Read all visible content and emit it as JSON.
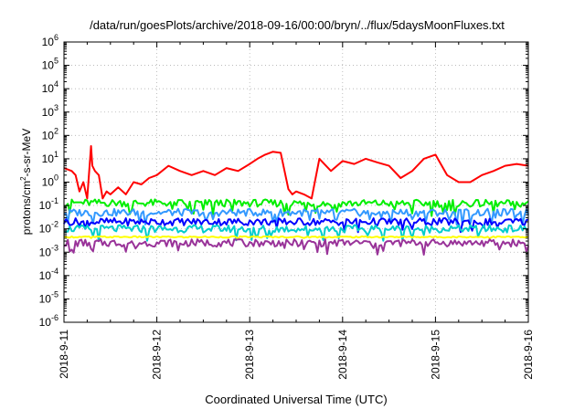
{
  "chart_data": {
    "type": "line",
    "title": "/data/run/goesPlots/archive/2018-09-16/00:00/bryn/../flux/5daysMoonFluxes.txt",
    "xlabel": "Coordinated Universal Time (UTC)",
    "ylabel": "protons/cm²-s-sr-MeV",
    "ylabel_parts": {
      "base": "protons/cm",
      "sup": "2",
      "rest": "-s-sr-MeV"
    },
    "yscale": "log",
    "ylim_exponent": [
      -6,
      6
    ],
    "y_ticks": [
      {
        "base": "10",
        "exp": "-6",
        "value": -6
      },
      {
        "base": "10",
        "exp": "-5",
        "value": -5
      },
      {
        "base": "10",
        "exp": "-4",
        "value": -4
      },
      {
        "base": "10",
        "exp": "-3",
        "value": -3
      },
      {
        "base": "10",
        "exp": "-2",
        "value": -2
      },
      {
        "base": "10",
        "exp": "-1",
        "value": -1
      },
      {
        "base": "10",
        "exp": "0",
        "value": 0
      },
      {
        "base": "10",
        "exp": "1",
        "value": 1
      },
      {
        "base": "10",
        "exp": "2",
        "value": 2
      },
      {
        "base": "10",
        "exp": "3",
        "value": 3
      },
      {
        "base": "10",
        "exp": "4",
        "value": 4
      },
      {
        "base": "10",
        "exp": "5",
        "value": 5
      },
      {
        "base": "10",
        "exp": "6",
        "value": 6
      }
    ],
    "xlim": [
      "2018-09-11",
      "2018-09-16"
    ],
    "x_ticks": [
      "2018-9-11",
      "2018-9-12",
      "2018-9-13",
      "2018-9-14",
      "2018-9-15",
      "2018-9-16"
    ],
    "grid": true,
    "series": [
      {
        "color": "#ff0000",
        "x": [
          "2018-09-11T00:00",
          "2018-09-11T02:00",
          "2018-09-11T03:00",
          "2018-09-11T04:00",
          "2018-09-11T05:00",
          "2018-09-11T06:00",
          "2018-09-11T07:00",
          "2018-09-11T07:20",
          "2018-09-11T08:00",
          "2018-09-11T09:00",
          "2018-09-11T10:00",
          "2018-09-11T11:00",
          "2018-09-11T12:00",
          "2018-09-11T14:00",
          "2018-09-11T16:00",
          "2018-09-11T18:00",
          "2018-09-11T20:00",
          "2018-09-11T22:00",
          "2018-09-12T00:00",
          "2018-09-12T03:00",
          "2018-09-12T06:00",
          "2018-09-12T09:00",
          "2018-09-12T12:00",
          "2018-09-12T15:00",
          "2018-09-12T18:00",
          "2018-09-12T21:00",
          "2018-09-13T00:00",
          "2018-09-13T02:00",
          "2018-09-13T04:00",
          "2018-09-13T06:00",
          "2018-09-13T08:00",
          "2018-09-13T10:00",
          "2018-09-13T11:00",
          "2018-09-13T12:00",
          "2018-09-13T14:00",
          "2018-09-13T16:00",
          "2018-09-13T18:00",
          "2018-09-13T21:00",
          "2018-09-14T00:00",
          "2018-09-14T03:00",
          "2018-09-14T06:00",
          "2018-09-14T09:00",
          "2018-09-14T12:00",
          "2018-09-14T15:00",
          "2018-09-14T18:00",
          "2018-09-14T21:00",
          "2018-09-15T00:00",
          "2018-09-15T03:00",
          "2018-09-15T06:00",
          "2018-09-15T09:00",
          "2018-09-15T12:00",
          "2018-09-15T15:00",
          "2018-09-15T18:00",
          "2018-09-15T21:00",
          "2018-09-16T00:00"
        ],
        "y": [
          4,
          3,
          2,
          0.4,
          1,
          0.2,
          35,
          5,
          3,
          2,
          0.2,
          0.4,
          0.3,
          0.6,
          0.3,
          1,
          0.8,
          1.5,
          2,
          5,
          3,
          2,
          3,
          2,
          4,
          3,
          6,
          10,
          15,
          20,
          18,
          0.5,
          0.3,
          0.4,
          0.3,
          0.2,
          10,
          3,
          8,
          6,
          10,
          7,
          5,
          1.5,
          3,
          10,
          15,
          2,
          1,
          1,
          2,
          3,
          5,
          6,
          5
        ]
      },
      {
        "color": "#00ee00",
        "x": [
          "2018-09-11T00:00",
          "2018-09-16T00:00"
        ],
        "y": [
          0.13,
          0.12
        ]
      },
      {
        "color": "#3399ff",
        "x": [
          "2018-09-11T00:00",
          "2018-09-16T00:00"
        ],
        "y": [
          0.05,
          0.05
        ]
      },
      {
        "color": "#0000ff",
        "x": [
          "2018-09-11T00:00",
          "2018-09-16T00:00"
        ],
        "y": [
          0.02,
          0.02
        ]
      },
      {
        "color": "#00cccc",
        "x": [
          "2018-09-11T00:00",
          "2018-09-16T00:00"
        ],
        "y": [
          0.01,
          0.01
        ]
      },
      {
        "color": "#ffff00",
        "x": [
          "2018-09-11T00:00",
          "2018-09-16T00:00"
        ],
        "y": [
          0.0045,
          0.0045
        ]
      },
      {
        "color": "#993399",
        "x": [
          "2018-09-11T00:00",
          "2018-09-16T00:00"
        ],
        "y": [
          0.0025,
          0.0025
        ]
      }
    ]
  }
}
